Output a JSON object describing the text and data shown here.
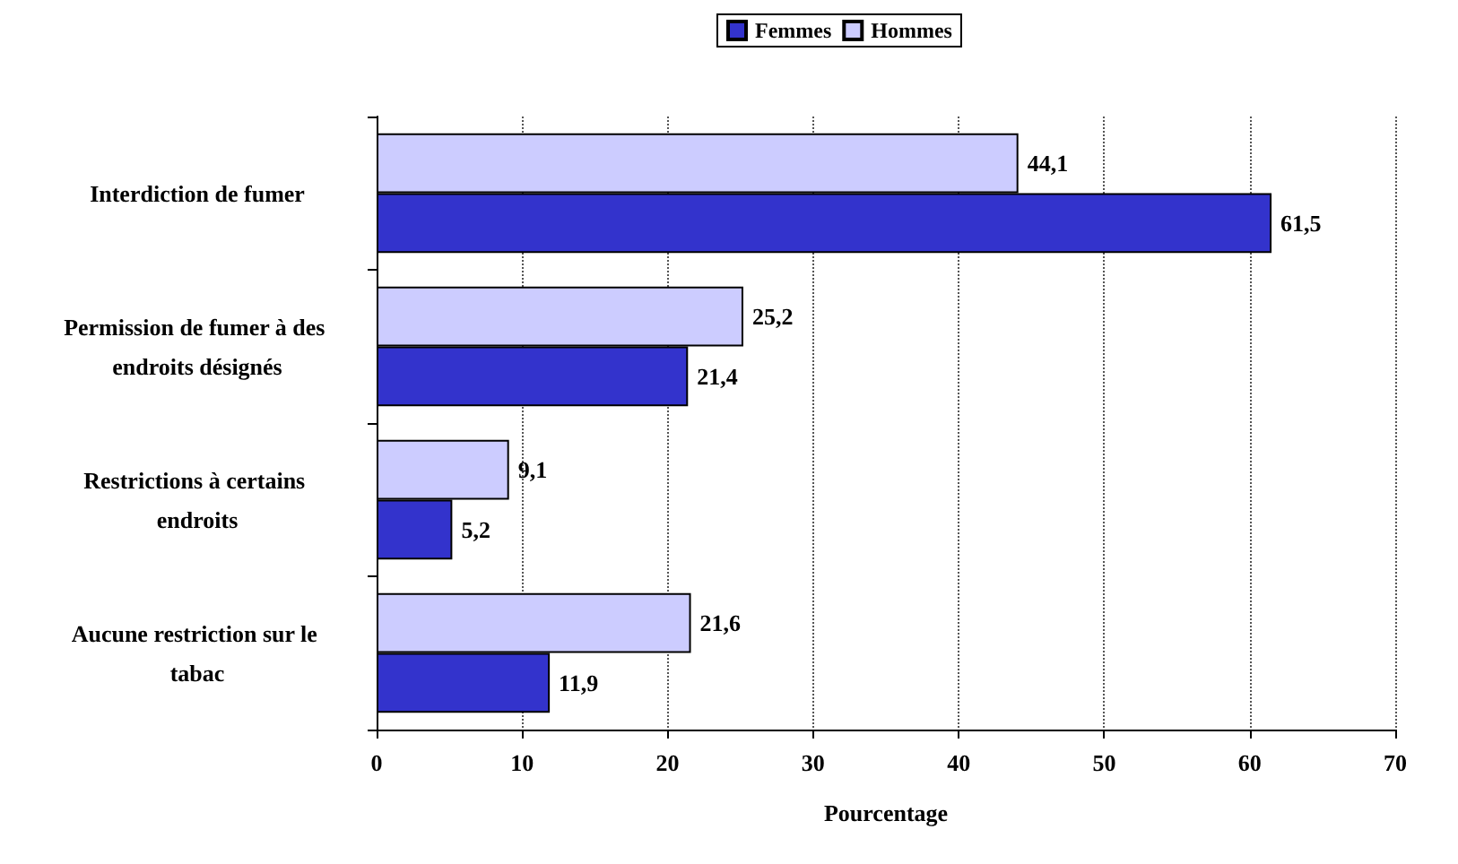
{
  "chart_data": {
    "type": "bar",
    "orientation": "horizontal",
    "xlabel": "Pourcentage",
    "categories": [
      "Interdiction de fumer",
      "Permission de fumer à des endroits désignés",
      "Restrictions à certains endroits",
      "Aucune restriction sur le tabac"
    ],
    "series": [
      {
        "name": "Femmes",
        "color": "#3333cc",
        "values": [
          61.5,
          21.4,
          5.2,
          11.9
        ],
        "value_labels": [
          "61,5",
          "21,4",
          "5,2",
          "11,9"
        ]
      },
      {
        "name": "Hommes",
        "color": "#ccccff",
        "values": [
          44.1,
          25.2,
          9.1,
          21.6
        ],
        "value_labels": [
          "44,1",
          "25,2",
          "9,1",
          "21,6"
        ]
      }
    ],
    "xlim": [
      0,
      70
    ],
    "xticks": [
      0,
      10,
      20,
      30,
      40,
      50,
      60,
      70
    ],
    "grid": "x",
    "legend": "top"
  }
}
